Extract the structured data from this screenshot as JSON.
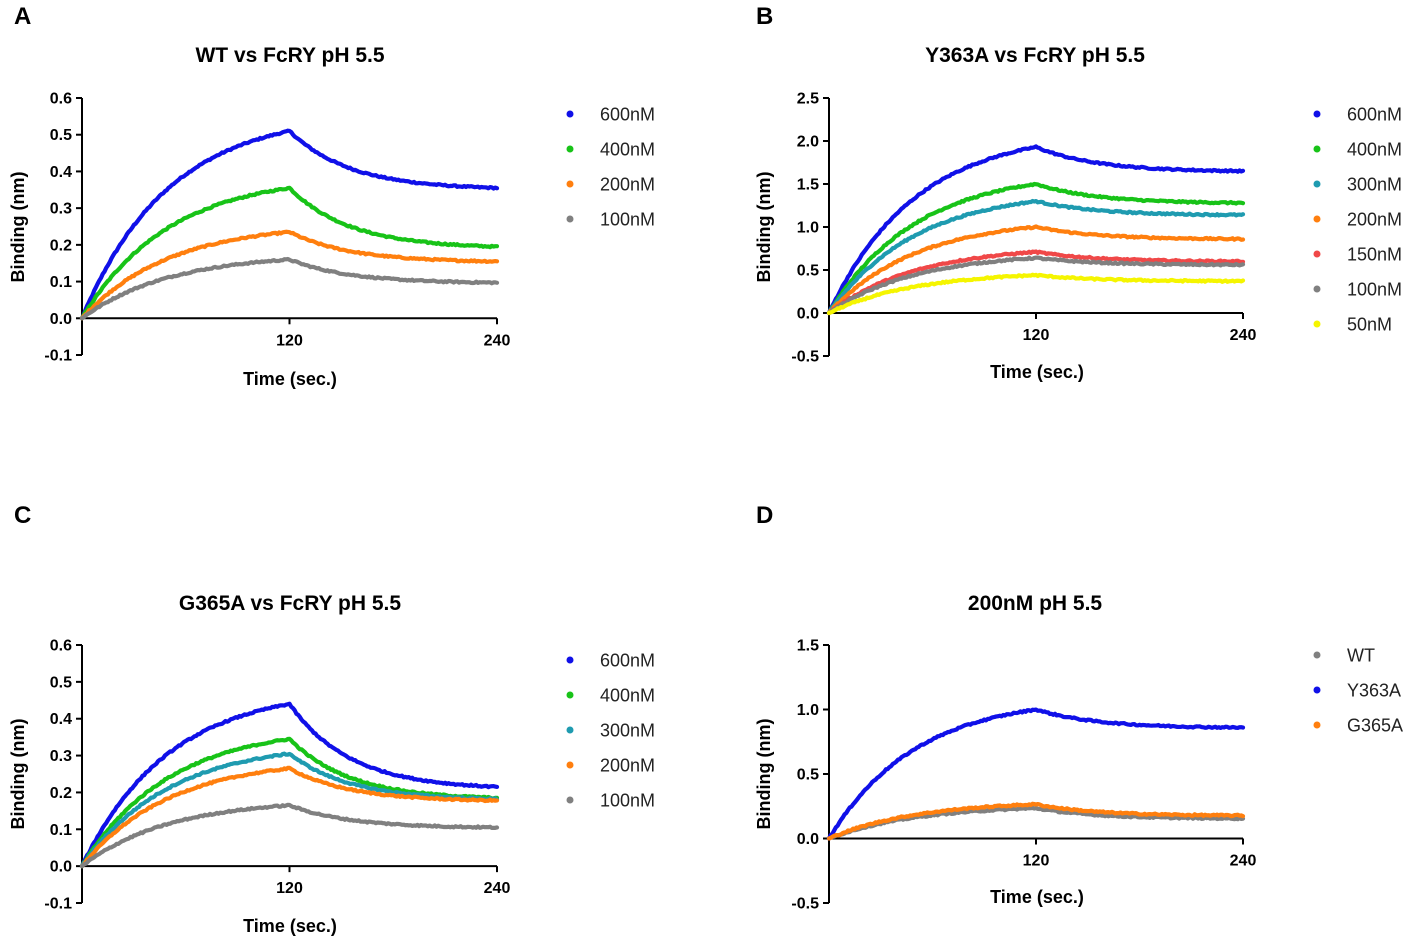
{
  "chart_data": [
    {
      "panel": "A",
      "type": "line",
      "title": "WT vs FcRY  pH 5.5",
      "xlabel": "Time (sec.)",
      "ylabel": "Binding (nm)",
      "xlim": [
        0,
        240
      ],
      "ylim": [
        -0.1,
        0.6
      ],
      "xticks": [
        120,
        240
      ],
      "yticks": [
        -0.1,
        0.0,
        0.1,
        0.2,
        0.3,
        0.4,
        0.5,
        0.6
      ],
      "ytick_decimals": 1,
      "legend": "top-right",
      "series": [
        {
          "name": "600nM",
          "color": "#1010e8",
          "values": {
            "0": 0.0,
            "120": 0.51,
            "240": 0.355
          }
        },
        {
          "name": "400nM",
          "color": "#18c318",
          "values": {
            "0": 0.0,
            "120": 0.355,
            "240": 0.195
          }
        },
        {
          "name": "200nM",
          "color": "#ff7f0e",
          "values": {
            "0": 0.0,
            "120": 0.235,
            "240": 0.155
          }
        },
        {
          "name": "100nM",
          "color": "#808080",
          "values": {
            "0": 0.0,
            "120": 0.16,
            "240": 0.097
          }
        }
      ]
    },
    {
      "panel": "B",
      "type": "line",
      "title": "Y363A vs FcRY  pH 5.5",
      "xlabel": "Time (sec.)",
      "ylabel": "Binding (nm)",
      "xlim": [
        0,
        240
      ],
      "ylim": [
        -0.5,
        2.5
      ],
      "xticks": [
        120,
        240
      ],
      "yticks": [
        -0.5,
        0.0,
        0.5,
        1.0,
        1.5,
        2.0,
        2.5
      ],
      "ytick_decimals": 1,
      "legend": "top-right",
      "series": [
        {
          "name": "600nM",
          "color": "#1010e8",
          "values": {
            "0": 0.0,
            "120": 1.93,
            "240": 1.65
          }
        },
        {
          "name": "400nM",
          "color": "#18c318",
          "values": {
            "0": 0.0,
            "120": 1.5,
            "240": 1.28
          }
        },
        {
          "name": "300nM",
          "color": "#1f9bb0",
          "values": {
            "0": 0.0,
            "120": 1.3,
            "240": 1.14
          }
        },
        {
          "name": "200nM",
          "color": "#ff7f0e",
          "values": {
            "0": 0.0,
            "120": 1.0,
            "240": 0.86
          }
        },
        {
          "name": "150nM",
          "color": "#f04848",
          "values": {
            "0": 0.0,
            "120": 0.71,
            "240": 0.6
          }
        },
        {
          "name": "100nM",
          "color": "#808080",
          "values": {
            "0": 0.0,
            "120": 0.64,
            "240": 0.56
          }
        },
        {
          "name": "50nM",
          "color": "#f5f500",
          "values": {
            "0": 0.0,
            "120": 0.44,
            "240": 0.37
          }
        }
      ]
    },
    {
      "panel": "C",
      "type": "line",
      "title": "G365A vs FcRY  pH 5.5",
      "xlabel": "Time (sec.)",
      "ylabel": "Binding (nm)",
      "xlim": [
        0,
        240
      ],
      "ylim": [
        -0.1,
        0.6
      ],
      "xticks": [
        120,
        240
      ],
      "yticks": [
        -0.1,
        0.0,
        0.1,
        0.2,
        0.3,
        0.4,
        0.5,
        0.6
      ],
      "ytick_decimals": 1,
      "legend": "top-right",
      "series": [
        {
          "name": "600nM",
          "color": "#1010e8",
          "values": {
            "0": 0.0,
            "120": 0.44,
            "240": 0.215
          }
        },
        {
          "name": "400nM",
          "color": "#18c318",
          "values": {
            "0": 0.0,
            "120": 0.345,
            "240": 0.185
          }
        },
        {
          "name": "300nM",
          "color": "#1f9bb0",
          "values": {
            "0": 0.0,
            "120": 0.305,
            "240": 0.182
          }
        },
        {
          "name": "200nM",
          "color": "#ff7f0e",
          "values": {
            "0": 0.0,
            "120": 0.265,
            "240": 0.178
          }
        },
        {
          "name": "100nM",
          "color": "#808080",
          "values": {
            "0": 0.0,
            "120": 0.165,
            "240": 0.105
          }
        }
      ]
    },
    {
      "panel": "D",
      "type": "line",
      "title": "200nM  pH 5.5",
      "xlabel": "Time (sec.)",
      "ylabel": "Binding (nm)",
      "xlim": [
        0,
        240
      ],
      "ylim": [
        -0.5,
        1.5
      ],
      "xticks": [
        120,
        240
      ],
      "yticks": [
        -0.5,
        0.0,
        0.5,
        1.0,
        1.5
      ],
      "ytick_decimals": 1,
      "legend": "top-right",
      "series": [
        {
          "name": "WT",
          "color": "#808080",
          "values": {
            "0": 0.0,
            "120": 0.235,
            "240": 0.155
          }
        },
        {
          "name": "Y363A",
          "color": "#1010e8",
          "values": {
            "0": 0.0,
            "120": 1.0,
            "240": 0.86
          }
        },
        {
          "name": "G365A",
          "color": "#ff7f0e",
          "values": {
            "0": 0.0,
            "120": 0.265,
            "240": 0.178
          }
        }
      ]
    }
  ]
}
